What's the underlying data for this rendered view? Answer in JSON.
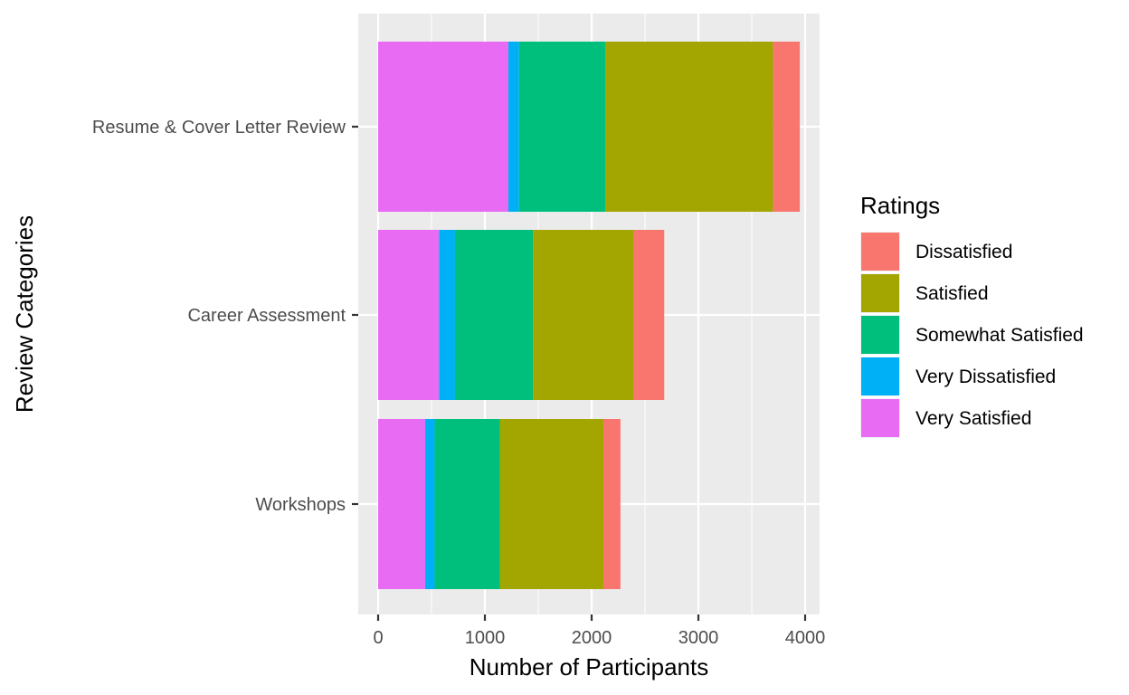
{
  "chart_data": {
    "type": "bar",
    "orientation": "horizontal",
    "stacked": true,
    "title": "",
    "xlabel": "Number of Participants",
    "ylabel": "Review Categories",
    "xlim": [
      0,
      4000
    ],
    "xticks": [
      0,
      1000,
      2000,
      3000,
      4000
    ],
    "grid": true,
    "legend_position": "right",
    "legend_title": "Ratings",
    "categories": [
      "Resume & Cover Letter Review",
      "Career Assessment",
      "Workshops"
    ],
    "series": [
      {
        "name": "Very Satisfied",
        "color": "#E76BF3",
        "values": [
          1220,
          570,
          440
        ]
      },
      {
        "name": "Very Dissatisfied",
        "color": "#00B0F6",
        "values": [
          100,
          150,
          90
        ]
      },
      {
        "name": "Somewhat Satisfied",
        "color": "#00BF7D",
        "values": [
          810,
          730,
          610
        ]
      },
      {
        "name": "Satisfied",
        "color": "#A3A500",
        "values": [
          1570,
          940,
          970
        ]
      },
      {
        "name": "Dissatisfied",
        "color": "#F8766D",
        "values": [
          250,
          290,
          160
        ]
      }
    ],
    "legend_order": [
      "Dissatisfied",
      "Satisfied",
      "Somewhat Satisfied",
      "Very Dissatisfied",
      "Very Satisfied"
    ]
  }
}
